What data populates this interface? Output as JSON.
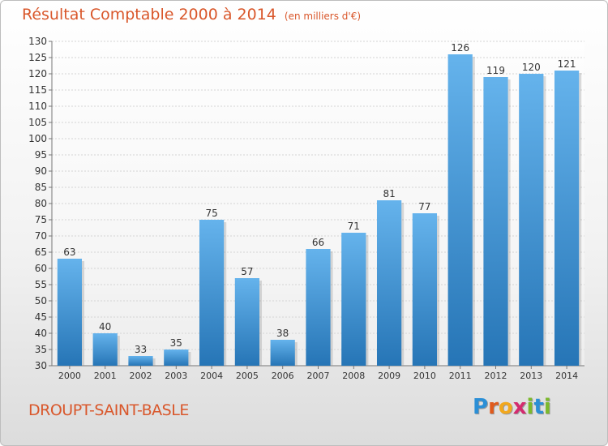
{
  "header": {
    "title": "Résultat Comptable 2000 à 2014",
    "subtitle": "(en milliers d'€)"
  },
  "footer": {
    "commune": "DROUPT-SAINT-BASLE",
    "logo_letters": [
      "P",
      "r",
      "o",
      "x",
      "i",
      "t",
      "i"
    ],
    "logo_colors": [
      "#2b8fd6",
      "#e05a1c",
      "#f2a81d",
      "#d42b6f",
      "#7cb92c",
      "#2b8fd6",
      "#7cb92c"
    ]
  },
  "colors": {
    "bar_top": "#65b3ec",
    "bar_bottom": "#2675b6",
    "title": "#d9572b"
  },
  "chart_data": {
    "type": "bar",
    "categories": [
      "2000",
      "2001",
      "2002",
      "2003",
      "2004",
      "2005",
      "2006",
      "2007",
      "2008",
      "2009",
      "2010",
      "2011",
      "2012",
      "2013",
      "2014"
    ],
    "values": [
      63,
      40,
      33,
      35,
      75,
      57,
      38,
      66,
      71,
      81,
      77,
      126,
      119,
      120,
      121
    ],
    "ylim": [
      30,
      130
    ],
    "yticks": [
      30,
      35,
      40,
      45,
      50,
      55,
      60,
      65,
      70,
      75,
      80,
      85,
      90,
      95,
      100,
      105,
      110,
      115,
      120,
      125,
      130
    ],
    "grid": true,
    "data_labels": true
  }
}
